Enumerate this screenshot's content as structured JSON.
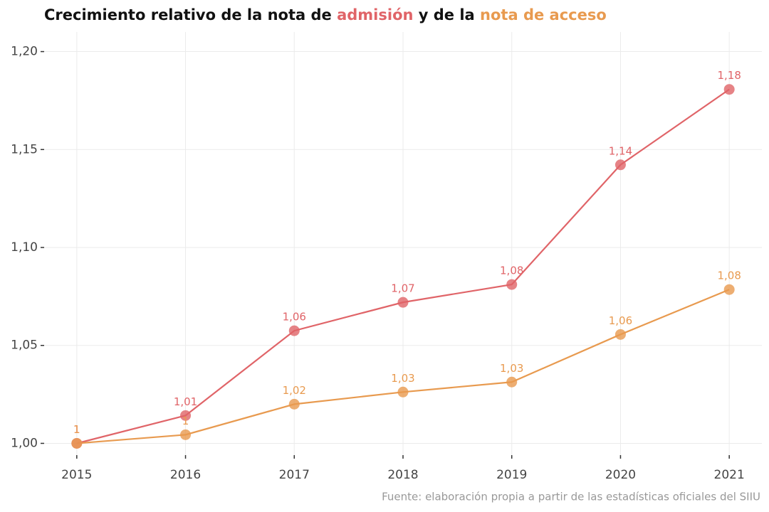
{
  "chart_data": {
    "type": "line",
    "title_start": "Crecimiento relativo de la nota de",
    "title_middle": "y de la",
    "caption": "Fuente: elaboración propia a partir de las estadísticas oficiales del SIIU",
    "x": [
      2015,
      2016,
      2017,
      2018,
      2019,
      2020,
      2021
    ],
    "series": [
      {
        "name": "admisión",
        "color": "#e06468",
        "values": [
          1.0,
          1.0142,
          1.0575,
          1.072,
          1.0811,
          1.1422,
          1.1807
        ],
        "value_labels": [
          "1",
          "1,01",
          "1,06",
          "1,07",
          "1,08",
          "1,14",
          "1,18"
        ]
      },
      {
        "name": "nota de acceso",
        "color": "#e89a4f",
        "values": [
          1.0,
          1.0044,
          1.02,
          1.0262,
          1.0313,
          1.0556,
          1.0785
        ],
        "value_labels": [
          "1",
          "1",
          "1,02",
          "1,03",
          "1,03",
          "1,06",
          "1,08"
        ]
      }
    ],
    "xlim": [
      2014.7,
      2021.3
    ],
    "xticks": [
      2015,
      2016,
      2017,
      2018,
      2019,
      2020,
      2021
    ],
    "ylim": [
      0.994,
      1.21
    ],
    "yticks": [
      {
        "value": 1.0,
        "label": "1,00"
      },
      {
        "value": 1.05,
        "label": "1,05"
      },
      {
        "value": 1.1,
        "label": "1,10"
      },
      {
        "value": 1.15,
        "label": "1,15"
      },
      {
        "value": 1.2,
        "label": "1,20"
      }
    ],
    "grid": true
  }
}
